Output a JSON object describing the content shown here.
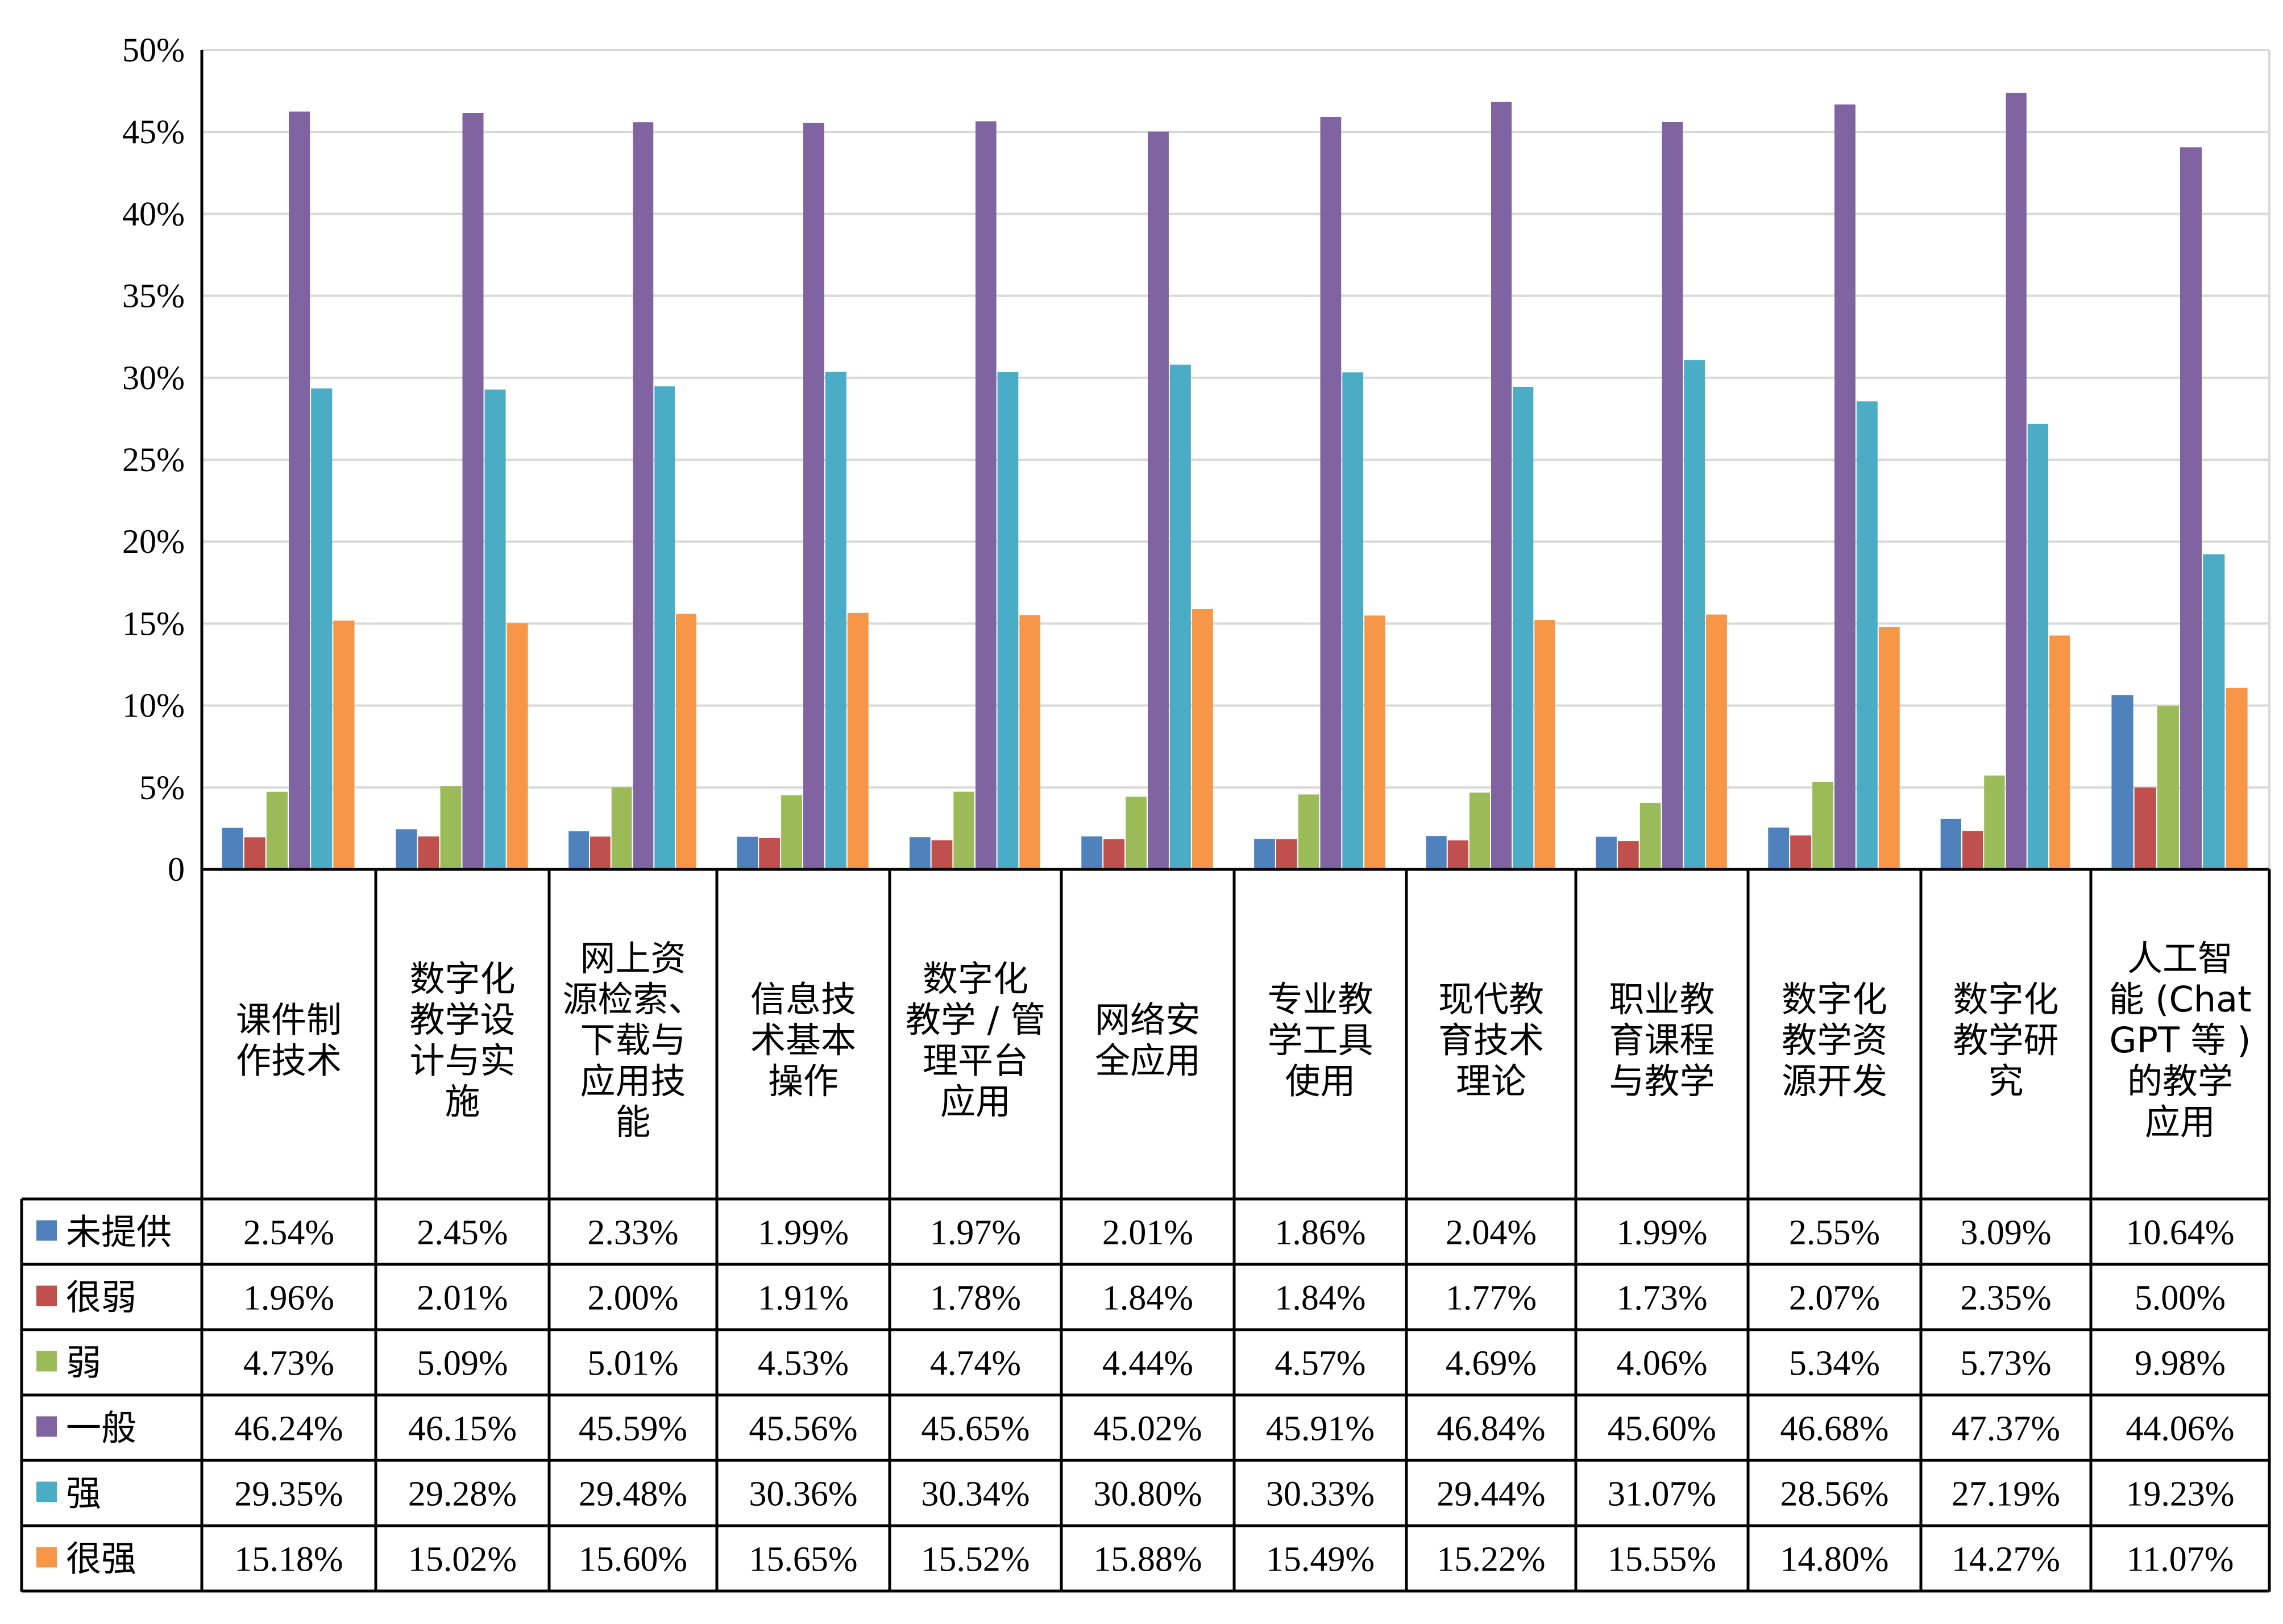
{
  "chart_data": {
    "type": "bar",
    "categories": [
      [
        "课件制",
        "作技术"
      ],
      [
        "数字化",
        "教学设",
        "计与实",
        "施"
      ],
      [
        "网上资",
        "源检索、",
        "下载与",
        "应用技",
        "能"
      ],
      [
        "信息技",
        "术基本",
        "操作"
      ],
      [
        "数字化",
        "教学 / 管",
        "理平台",
        "应用"
      ],
      [
        "网络安",
        "全应用"
      ],
      [
        "专业教",
        "学工具",
        "使用"
      ],
      [
        "现代教",
        "育技术",
        "理论"
      ],
      [
        "职业教",
        "育课程",
        "与教学"
      ],
      [
        "数字化",
        "教学资",
        "源开发"
      ],
      [
        "数字化",
        "教学研",
        "究"
      ],
      [
        "人工智",
        "能 (Chat",
        "GPT 等 )",
        "的教学",
        "应用"
      ]
    ],
    "ylim": [
      0,
      50
    ],
    "yticks": [
      "0",
      "5%",
      "10%",
      "15%",
      "20%",
      "25%",
      "30%",
      "35%",
      "40%",
      "45%",
      "50%"
    ],
    "grid": true,
    "legend_placement": "data-table",
    "series": [
      {
        "name": "未提供",
        "color": "#4F81BD",
        "values": [
          2.54,
          2.45,
          2.33,
          1.99,
          1.97,
          2.01,
          1.86,
          2.04,
          1.99,
          2.55,
          3.09,
          10.64
        ],
        "labels": [
          "2.54%",
          "2.45%",
          "2.33%",
          "1.99%",
          "1.97%",
          "2.01%",
          "1.86%",
          "2.04%",
          "1.99%",
          "2.55%",
          "3.09%",
          "10.64%"
        ]
      },
      {
        "name": "很弱",
        "color": "#C0504D",
        "values": [
          1.96,
          2.01,
          2.0,
          1.91,
          1.78,
          1.84,
          1.84,
          1.77,
          1.73,
          2.07,
          2.35,
          5.0
        ],
        "labels": [
          "1.96%",
          "2.01%",
          "2.00%",
          "1.91%",
          "1.78%",
          "1.84%",
          "1.84%",
          "1.77%",
          "1.73%",
          "2.07%",
          "2.35%",
          "5.00%"
        ]
      },
      {
        "name": "弱",
        "color": "#9BBB59",
        "values": [
          4.73,
          5.09,
          5.01,
          4.53,
          4.74,
          4.44,
          4.57,
          4.69,
          4.06,
          5.34,
          5.73,
          9.98
        ],
        "labels": [
          "4.73%",
          "5.09%",
          "5.01%",
          "4.53%",
          "4.74%",
          "4.44%",
          "4.57%",
          "4.69%",
          "4.06%",
          "5.34%",
          "5.73%",
          "9.98%"
        ]
      },
      {
        "name": "一般",
        "color": "#8064A2",
        "values": [
          46.24,
          46.15,
          45.59,
          45.56,
          45.65,
          45.02,
          45.91,
          46.84,
          45.6,
          46.68,
          47.37,
          44.06
        ],
        "labels": [
          "46.24%",
          "46.15%",
          "45.59%",
          "45.56%",
          "45.65%",
          "45.02%",
          "45.91%",
          "46.84%",
          "45.60%",
          "46.68%",
          "47.37%",
          "44.06%"
        ]
      },
      {
        "name": "强",
        "color": "#4BACC6",
        "values": [
          29.35,
          29.28,
          29.48,
          30.36,
          30.34,
          30.8,
          30.33,
          29.44,
          31.07,
          28.56,
          27.19,
          19.23
        ],
        "labels": [
          "29.35%",
          "29.28%",
          "29.48%",
          "30.36%",
          "30.34%",
          "30.80%",
          "30.33%",
          "29.44%",
          "31.07%",
          "28.56%",
          "27.19%",
          "19.23%"
        ]
      },
      {
        "name": "很强",
        "color": "#F79646",
        "values": [
          15.18,
          15.02,
          15.6,
          15.65,
          15.52,
          15.88,
          15.49,
          15.22,
          15.55,
          14.8,
          14.27,
          11.07
        ],
        "labels": [
          "15.18%",
          "15.02%",
          "15.60%",
          "15.65%",
          "15.52%",
          "15.88%",
          "15.49%",
          "15.22%",
          "15.55%",
          "14.80%",
          "14.27%",
          "11.07%"
        ]
      }
    ]
  }
}
